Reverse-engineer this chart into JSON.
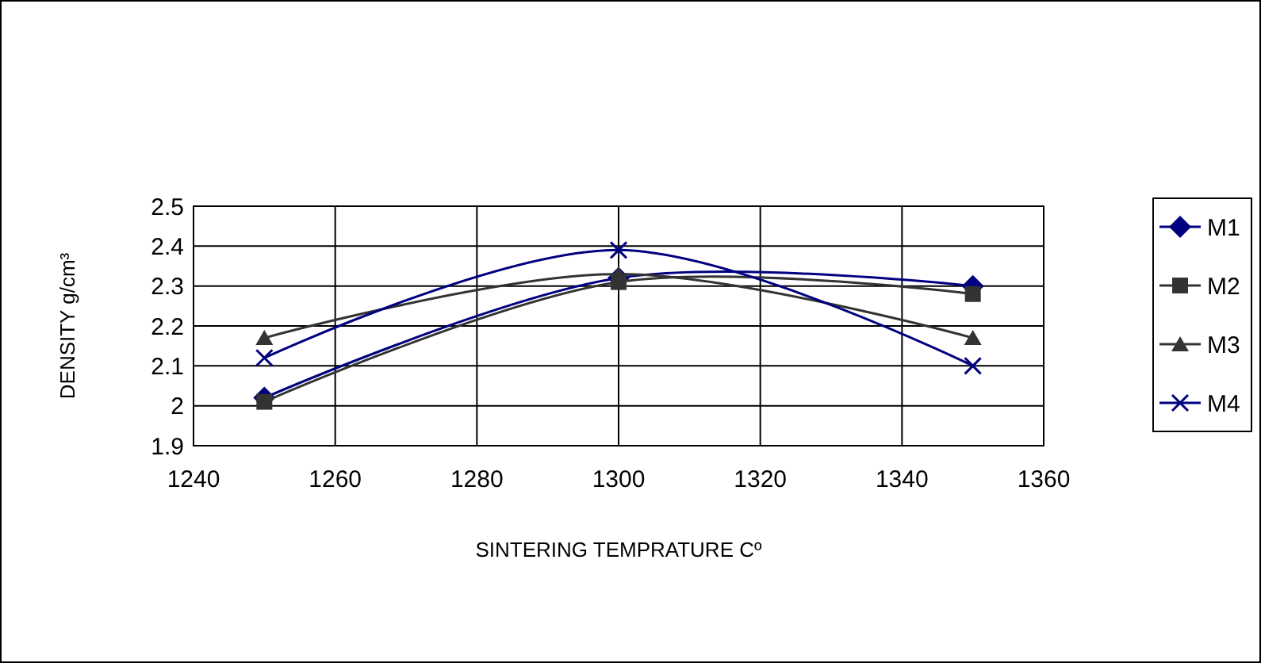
{
  "chart_data": {
    "type": "line",
    "xlabel": "SINTERING TEMPRATURE Cº",
    "ylabel": "DENSITY g/cm³",
    "x": [
      1250,
      1300,
      1350
    ],
    "series": [
      {
        "name": "M1",
        "color": "#000080",
        "values": [
          2.02,
          2.32,
          2.3
        ],
        "marker": "diamond"
      },
      {
        "name": "M2",
        "color": "#333333",
        "values": [
          2.01,
          2.31,
          2.28
        ],
        "marker": "square"
      },
      {
        "name": "M3",
        "color": "#333333",
        "values": [
          2.17,
          2.33,
          2.17
        ],
        "marker": "triangle"
      },
      {
        "name": "M4",
        "color": "#000080",
        "values": [
          2.12,
          2.39,
          2.1
        ],
        "marker": "cross"
      }
    ],
    "xlim": [
      1240,
      1360
    ],
    "xticks": [
      1240,
      1260,
      1280,
      1300,
      1320,
      1340,
      1360
    ],
    "ylim": [
      1.9,
      2.5
    ],
    "yticks": [
      1.9,
      2,
      2.1,
      2.2,
      2.3,
      2.4,
      2.5
    ],
    "grid": true,
    "legend": "right",
    "line_style": "solid"
  }
}
